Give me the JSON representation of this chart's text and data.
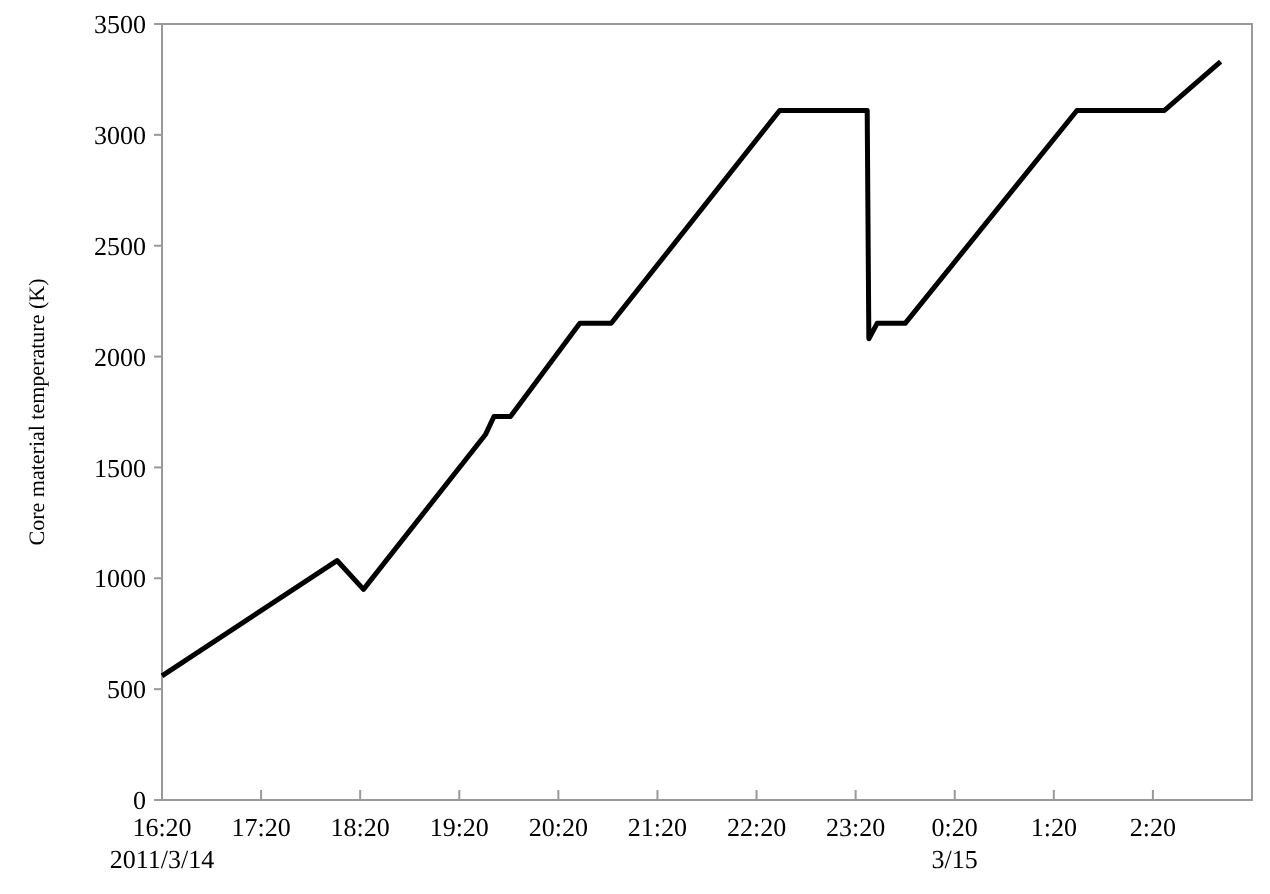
{
  "chart_data": {
    "type": "line",
    "ylabel": "Core material temperature (K)",
    "x": [
      "2011-03-14T16:20",
      "2011-03-14T18:06",
      "2011-03-14T18:22",
      "2011-03-14T19:36",
      "2011-03-14T19:41",
      "2011-03-14T19:51",
      "2011-03-14T20:33",
      "2011-03-14T20:52",
      "2011-03-14T22:34",
      "2011-03-14T23:27",
      "2011-03-14T23:28",
      "2011-03-14T23:33",
      "2011-03-14T23:50",
      "2011-03-15T01:34",
      "2011-03-15T02:27",
      "2011-03-15T03:01"
    ],
    "series": [
      {
        "color": "#000000",
        "values": [
          560,
          1080,
          950,
          1650,
          1730,
          1730,
          2150,
          2150,
          3110,
          3110,
          2080,
          2150,
          2150,
          3110,
          3110,
          3330
        ]
      }
    ],
    "xlim": [
      "2011-03-14T16:20",
      "2011-03-15T03:20"
    ],
    "xticks": [
      {
        "value": "2011-03-14T16:20",
        "label": "16:20\n2011/3/14"
      },
      {
        "value": "2011-03-14T17:20",
        "label": "17:20"
      },
      {
        "value": "2011-03-14T18:20",
        "label": "18:20"
      },
      {
        "value": "2011-03-14T19:20",
        "label": "19:20"
      },
      {
        "value": "2011-03-14T20:20",
        "label": "20:20"
      },
      {
        "value": "2011-03-14T21:20",
        "label": "21:20"
      },
      {
        "value": "2011-03-14T22:20",
        "label": "22:20"
      },
      {
        "value": "2011-03-14T23:20",
        "label": "23:20"
      },
      {
        "value": "2011-03-15T00:20",
        "label": "0:20\n3/15"
      },
      {
        "value": "2011-03-15T01:20",
        "label": "1:20"
      },
      {
        "value": "2011-03-15T02:20",
        "label": "2:20"
      }
    ],
    "ylim": [
      0,
      3500
    ],
    "yticks": [
      0,
      500,
      1000,
      1500,
      2000,
      2500,
      3000,
      3500
    ],
    "grid": false,
    "marker": "none",
    "line_style": "solid"
  }
}
